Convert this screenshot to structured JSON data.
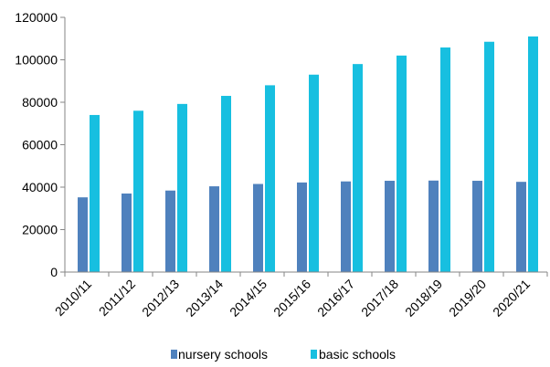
{
  "colors": {
    "nursery": "#4F81BD",
    "basic": "#17BFE0",
    "axis": "#868686",
    "grid": "#D9D9D9"
  },
  "chart_data": {
    "type": "bar",
    "categories": [
      "2010/11",
      "2011/12",
      "2012/13",
      "2013/14",
      "2014/15",
      "2015/16",
      "2016/17",
      "2017/18",
      "2018/19",
      "2019/20",
      "2020/21"
    ],
    "series": [
      {
        "name": "nursery schools",
        "values": [
          35200,
          37000,
          38400,
          40400,
          41500,
          42200,
          42700,
          43000,
          43100,
          43000,
          42500
        ]
      },
      {
        "name": "basic schools",
        "values": [
          74000,
          76000,
          79200,
          83000,
          88000,
          93000,
          98000,
          102000,
          105800,
          108500,
          111000
        ]
      }
    ],
    "ylim": [
      0,
      120000
    ],
    "yticks": [
      "0",
      "20000",
      "40000",
      "60000",
      "80000",
      "100000",
      "120000"
    ],
    "grid": false,
    "legend": "bottom"
  }
}
